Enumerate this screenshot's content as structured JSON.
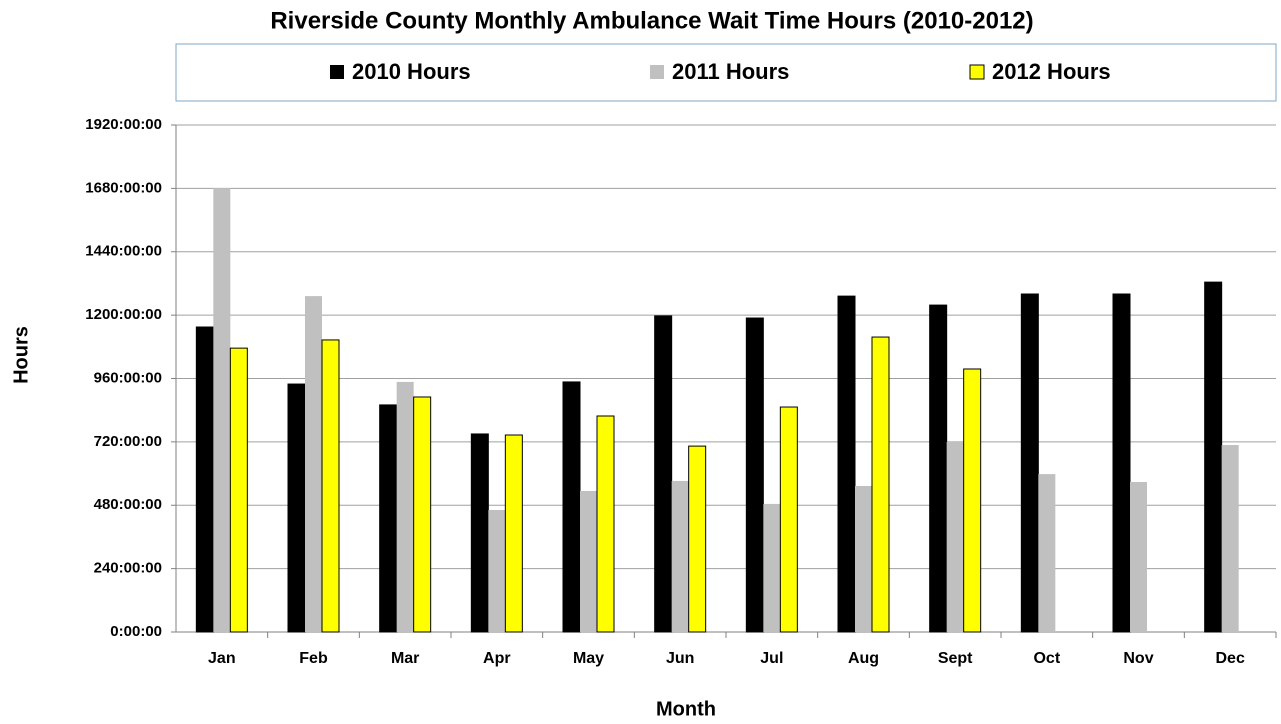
{
  "chart_data": {
    "type": "bar",
    "title": "Riverside County  Monthly Ambulance Wait Time Hours    (2010-2012)",
    "x_label": "Month",
    "y_label": "Hours",
    "categories": [
      "Jan",
      "Feb",
      "Mar",
      "Apr",
      "May",
      "Jun",
      "Jul",
      "Aug",
      "Sept",
      "Oct",
      "Nov",
      "Dec"
    ],
    "series": [
      {
        "name": "2010 Hours",
        "color": "#000000",
        "values": [
          1155,
          939,
          860,
          750,
          947,
          1197,
          1189,
          1272,
          1238,
          1280,
          1280,
          1325
        ]
      },
      {
        "name": "2011 Hours",
        "color": "#c0c0c0",
        "values": [
          1681,
          1272,
          947,
          462,
          534,
          572,
          485,
          553,
          720,
          598,
          568,
          708
        ]
      },
      {
        "name": "2012 Hours",
        "color": "#ffff00",
        "values": [
          1075,
          1106,
          890,
          746,
          818,
          704,
          852,
          1117,
          996,
          null,
          null,
          null
        ]
      }
    ],
    "ylim": [
      0,
      1920
    ],
    "yticks": [
      {
        "value": 0,
        "label": "0:00:00"
      },
      {
        "value": 240,
        "label": "240:00:00"
      },
      {
        "value": 480,
        "label": "480:00:00"
      },
      {
        "value": 720,
        "label": "720:00:00"
      },
      {
        "value": 960,
        "label": "960:00:00"
      },
      {
        "value": 1200,
        "label": "1200:00:00"
      },
      {
        "value": 1440,
        "label": "1440:00:00"
      },
      {
        "value": 1680,
        "label": "1680:00:00"
      },
      {
        "value": 1920,
        "label": "1920:00:00"
      }
    ],
    "grid": true,
    "legend": "top"
  }
}
